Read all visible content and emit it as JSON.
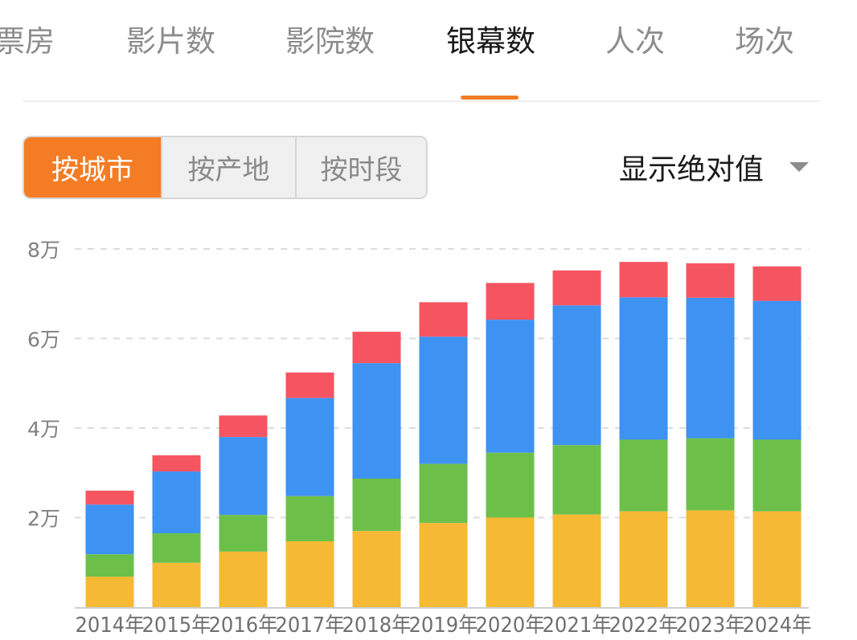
{
  "tabs": {
    "partial": "票房",
    "items": [
      "影片数",
      "影院数",
      "银幕数",
      "人次",
      "场次"
    ],
    "active_index": 2
  },
  "filters": {
    "options": [
      "按城市",
      "按产地",
      "按时段"
    ],
    "active_index": 0
  },
  "display_mode": "显示绝对值",
  "colors": {
    "accent": "#f37c24",
    "series": [
      "#f6b935",
      "#6cc04a",
      "#3d92f2",
      "#f55461"
    ]
  },
  "chart_data": {
    "type": "bar",
    "stacked": true,
    "title": "",
    "xlabel": "",
    "ylabel": "",
    "ylim": [
      0,
      80000
    ],
    "y_ticks": [
      {
        "value": 20000,
        "label": "2万"
      },
      {
        "value": 40000,
        "label": "4万"
      },
      {
        "value": 60000,
        "label": "6万"
      },
      {
        "value": 80000,
        "label": "8万"
      }
    ],
    "categories": [
      "2014年",
      "2015年",
      "2016年",
      "2017年",
      "2018年",
      "2019年",
      "2020年",
      "2021年",
      "2022年",
      "2023年",
      "2024年"
    ],
    "series": [
      {
        "name": "series-1",
        "color": "#f6b935",
        "values": [
          6800,
          9900,
          12400,
          14700,
          17000,
          18800,
          20000,
          20700,
          21400,
          21600,
          21400
        ]
      },
      {
        "name": "series-2",
        "color": "#6cc04a",
        "values": [
          5000,
          6600,
          8200,
          10100,
          11700,
          13200,
          14500,
          15500,
          16000,
          16100,
          16000
        ]
      },
      {
        "name": "series-3",
        "color": "#3d92f2",
        "values": [
          11100,
          13800,
          17400,
          21900,
          25800,
          28400,
          29700,
          31200,
          31800,
          31400,
          31000
        ]
      },
      {
        "name": "series-4",
        "color": "#f55461",
        "values": [
          3100,
          3600,
          4800,
          5700,
          7000,
          7700,
          8200,
          7800,
          7900,
          7700,
          7700
        ]
      }
    ]
  }
}
